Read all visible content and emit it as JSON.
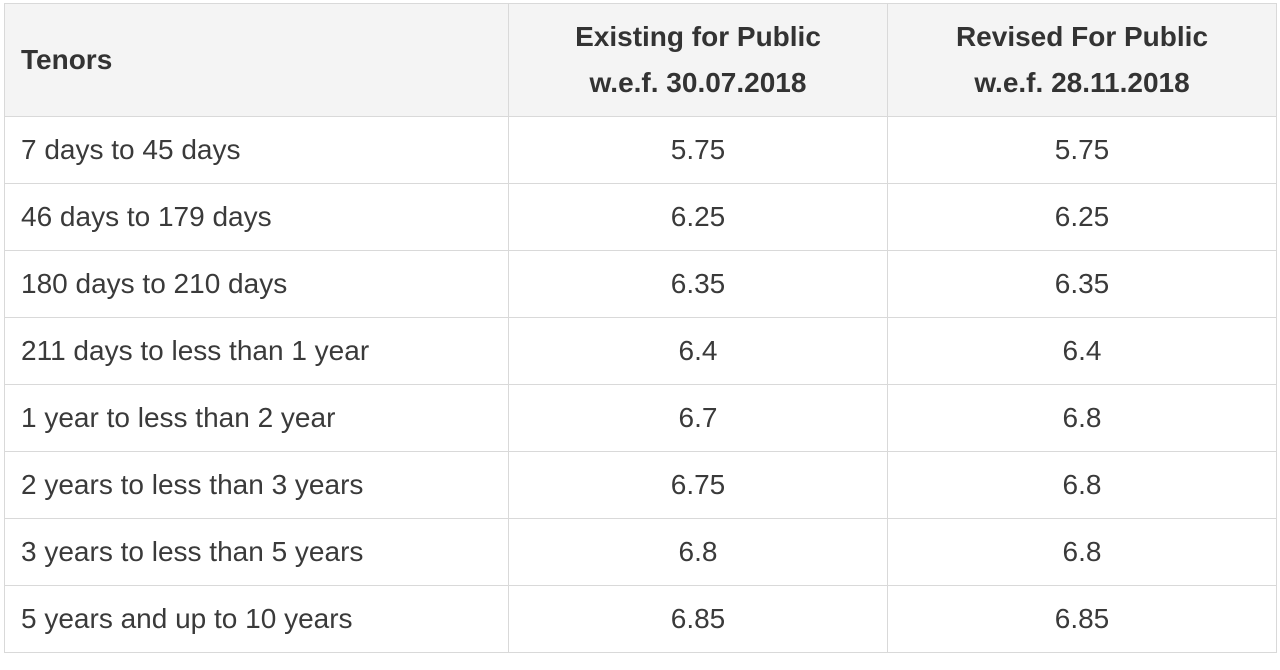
{
  "table": {
    "columns": [
      [
        "Tenors"
      ],
      [
        "Existing for Public",
        "w.e.f. 30.07.2018"
      ],
      [
        "Revised For Public",
        "w.e.f. 28.11.2018"
      ]
    ],
    "rows": [
      [
        "7 days to 45 days",
        "5.75",
        "5.75"
      ],
      [
        "46 days to 179 days",
        "6.25",
        "6.25"
      ],
      [
        "180 days to 210 days",
        "6.35",
        "6.35"
      ],
      [
        "211 days to less than 1 year",
        "6.4",
        "6.4"
      ],
      [
        "1 year to less than 2 year",
        "6.7",
        "6.8"
      ],
      [
        "2 years to less than 3 years",
        "6.75",
        "6.8"
      ],
      [
        "3 years to less than 5 years",
        "6.8",
        "6.8"
      ],
      [
        "5 years and up to 10 years",
        "6.85",
        "6.85"
      ]
    ]
  }
}
